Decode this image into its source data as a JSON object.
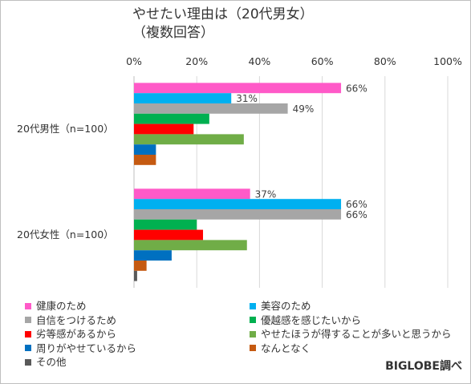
{
  "chart_data": {
    "type": "bar",
    "orientation": "horizontal",
    "title": "やせたい理由は（20代男女）\n（複数回答）",
    "categories": [
      "20代男性（n=100）",
      "20代女性（n=100）"
    ],
    "xlim": [
      0,
      100
    ],
    "x_ticks": [
      "0%",
      "20%",
      "40%",
      "60%",
      "80%",
      "100%"
    ],
    "grid": "vertical",
    "legend_position": "bottom",
    "series": [
      {
        "name": "健康のため",
        "color": "#ff5ac8",
        "values": [
          66,
          37
        ],
        "labels": [
          "66%",
          "37%"
        ]
      },
      {
        "name": "美容のため",
        "color": "#00b0f0",
        "values": [
          31,
          66
        ],
        "labels": [
          "31%",
          "66%"
        ]
      },
      {
        "name": "自信をつけるため",
        "color": "#a6a6a6",
        "values": [
          49,
          66
        ],
        "labels": [
          "49%",
          "66%"
        ]
      },
      {
        "name": "優越感を感じたいから",
        "color": "#00b050",
        "values": [
          24,
          20
        ],
        "labels": [
          "",
          ""
        ]
      },
      {
        "name": "劣等感があるから",
        "color": "#ff0000",
        "values": [
          19,
          22
        ],
        "labels": [
          "",
          ""
        ]
      },
      {
        "name": "やせたほうが得することが多いと思うから",
        "color": "#70ad47",
        "values": [
          35,
          36
        ],
        "labels": [
          "",
          ""
        ]
      },
      {
        "name": "周りがやせているから",
        "color": "#0070c0",
        "values": [
          7,
          12
        ],
        "labels": [
          "",
          ""
        ]
      },
      {
        "name": "なんとなく",
        "color": "#c55a11",
        "values": [
          7,
          4
        ],
        "labels": [
          "",
          ""
        ]
      },
      {
        "name": "その他",
        "color": "#595959",
        "values": [
          0,
          1
        ],
        "labels": [
          "",
          ""
        ]
      }
    ]
  },
  "credit": "BIGLOBE調べ"
}
